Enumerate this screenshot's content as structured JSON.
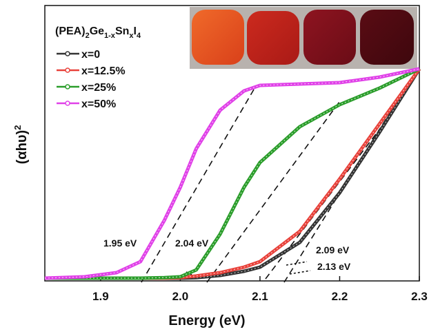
{
  "chart_data": {
    "type": "line",
    "xlabel": "Energy (eV)",
    "ylabel_parts": [
      "(αhυ)",
      "2"
    ],
    "legend_title_parts": [
      "(PEA)",
      "2",
      "Ge",
      "1-x",
      "Sn",
      "x",
      "I",
      "4"
    ],
    "x": [
      1.83,
      1.88,
      1.92,
      1.95,
      1.98,
      2.0,
      2.02,
      2.05,
      2.08,
      2.1,
      2.15,
      2.2,
      2.25,
      2.3
    ],
    "series": [
      {
        "name": "x=0",
        "color": "#333333",
        "values": [
          0.01,
          0.01,
          0.01,
          0.01,
          0.01,
          0.01,
          0.012,
          0.02,
          0.035,
          0.05,
          0.14,
          0.32,
          0.54,
          0.77
        ]
      },
      {
        "name": "x=12.5%",
        "color": "#e8413a",
        "values": [
          0.01,
          0.01,
          0.01,
          0.01,
          0.01,
          0.012,
          0.018,
          0.03,
          0.05,
          0.07,
          0.18,
          0.37,
          0.57,
          0.77
        ]
      },
      {
        "name": "x=25%",
        "color": "#2a9d2a",
        "values": [
          0.01,
          0.01,
          0.01,
          0.01,
          0.012,
          0.015,
          0.04,
          0.17,
          0.34,
          0.43,
          0.56,
          0.64,
          0.7,
          0.77
        ]
      },
      {
        "name": "x=50%",
        "color": "#e040e8",
        "values": [
          0.01,
          0.015,
          0.03,
          0.07,
          0.22,
          0.34,
          0.48,
          0.62,
          0.69,
          0.71,
          0.715,
          0.72,
          0.74,
          0.77
        ]
      }
    ],
    "xlim": [
      1.83,
      2.3
    ],
    "xticks": [
      1.9,
      {
        "value": 2,
        "label": "2.0"
      },
      2.1,
      2.2,
      2.3
    ],
    "ylim": [
      0,
      1
    ],
    "annotations": [
      "1.95 eV",
      "2.04 eV",
      "2.09 eV",
      "2.13 eV"
    ]
  }
}
